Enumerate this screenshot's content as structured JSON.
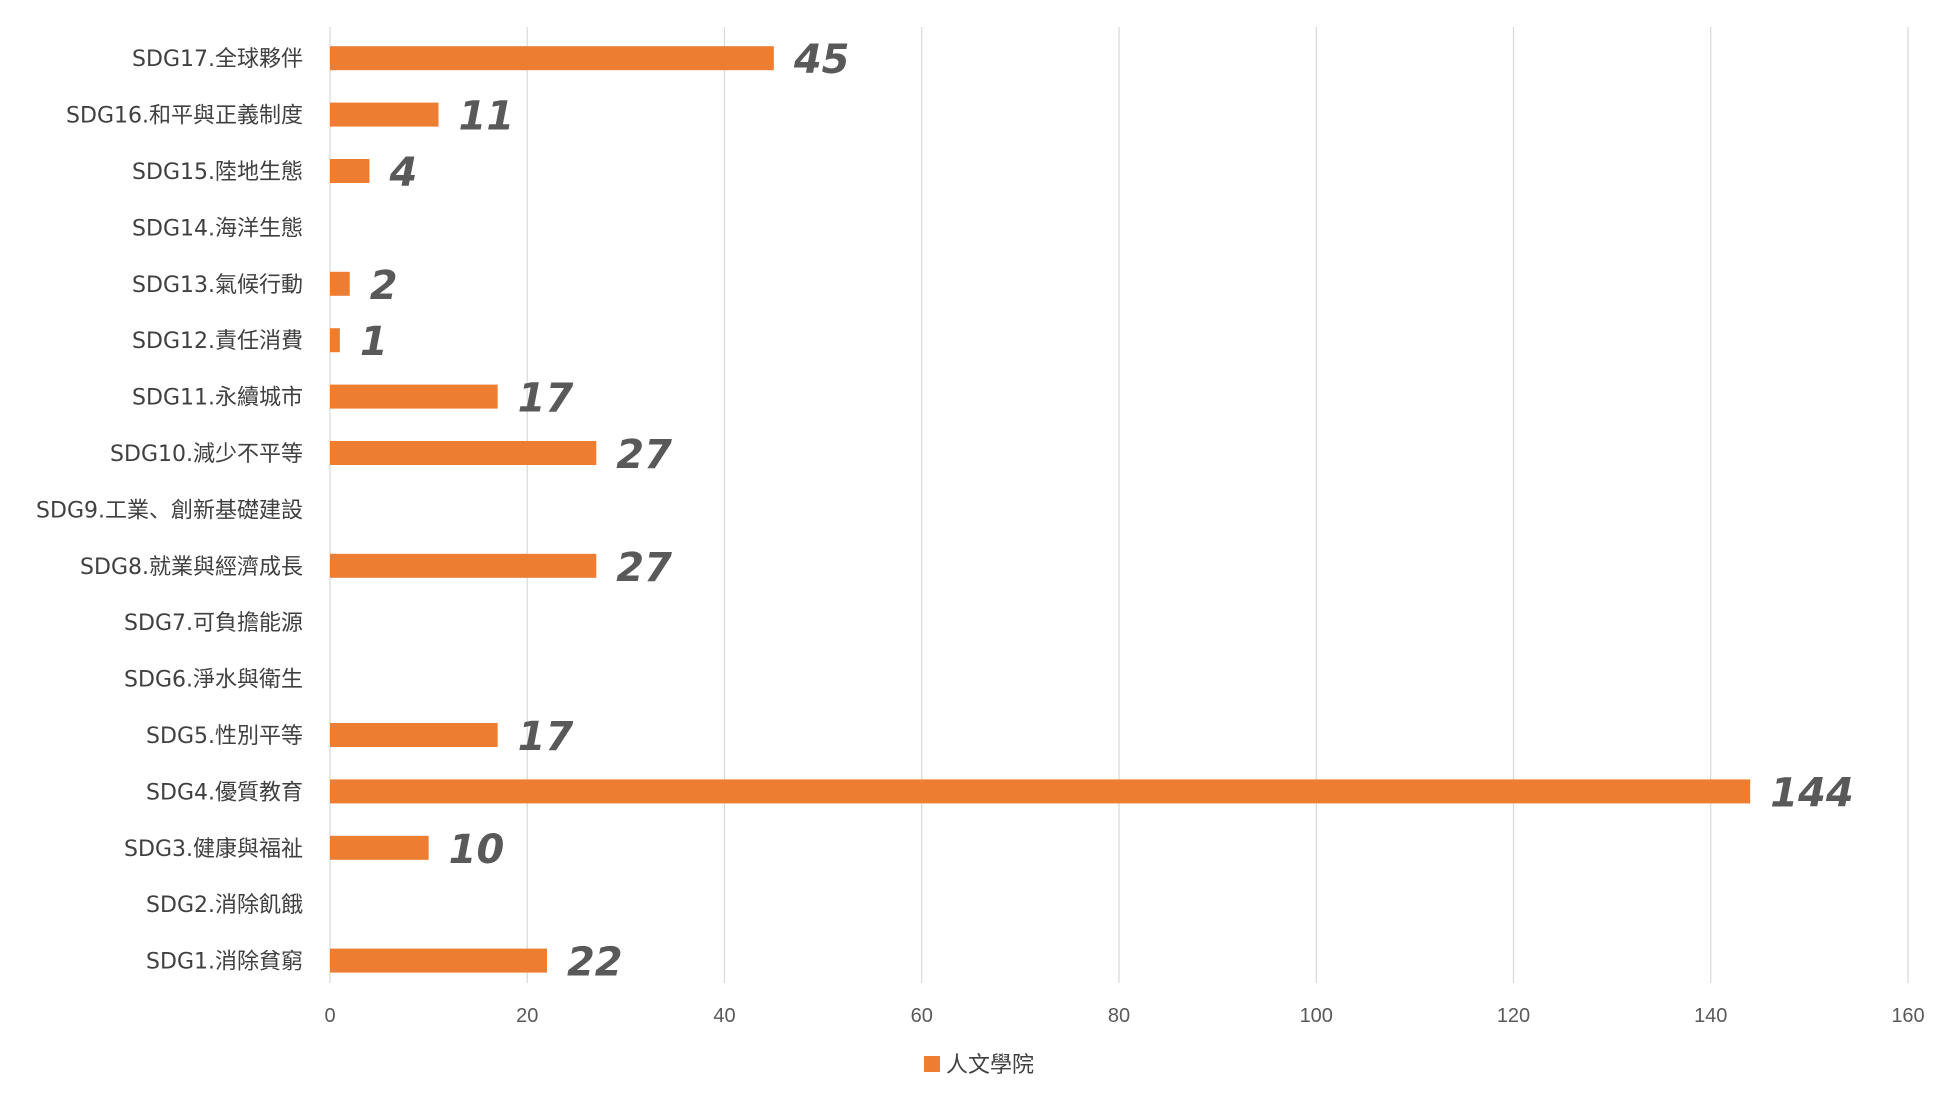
{
  "chart_data": {
    "type": "bar",
    "orientation": "horizontal",
    "categories": [
      "SDG17.全球夥伴",
      "SDG16.和平與正義制度",
      "SDG15.陸地生態",
      "SDG14.海洋生態",
      "SDG13.氣候行動",
      "SDG12.責任消費",
      "SDG11.永續城市",
      "SDG10.減少不平等",
      "SDG9.工業、創新基礎建設",
      "SDG8.就業與經濟成長",
      "SDG7.可負擔能源",
      "SDG6.淨水與衛生",
      "SDG5.性別平等",
      "SDG4.優質教育",
      "SDG3.健康與福祉",
      "SDG2.消除飢餓",
      "SDG1.消除貧窮"
    ],
    "series": [
      {
        "name": "人文學院",
        "color": "#ED7D31",
        "values": [
          45,
          11,
          4,
          null,
          2,
          1,
          17,
          27,
          null,
          27,
          null,
          null,
          17,
          144,
          10,
          null,
          22
        ]
      }
    ],
    "data_labels": [
      "45",
      "11",
      "4",
      "",
      "2",
      "1",
      "17",
      "27",
      "",
      "27",
      "",
      "",
      "17",
      "144",
      "10",
      "",
      "22"
    ],
    "x_ticks": [
      "0",
      "20",
      "40",
      "60",
      "80",
      "100",
      "120",
      "140",
      "160"
    ],
    "xlim": [
      0,
      160
    ],
    "title": "",
    "xlabel": "",
    "ylabel": "",
    "grid": "vertical",
    "legend": "bottom",
    "colors": {
      "bar": "#ED7D31",
      "grid": "#D9D9D9",
      "axis_text": "#595959",
      "label_text": "#404040"
    }
  }
}
